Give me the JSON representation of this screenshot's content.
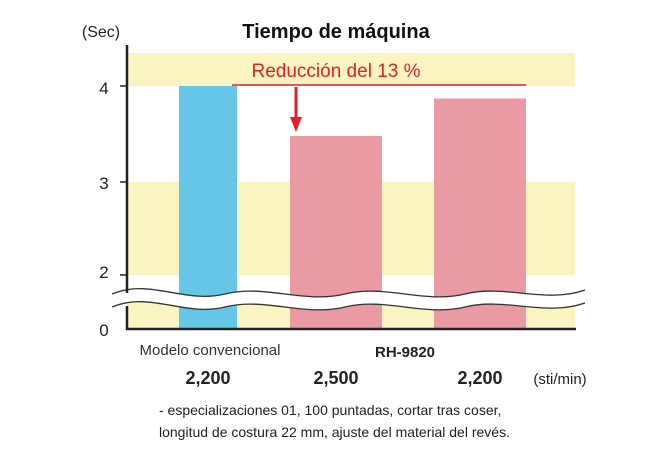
{
  "chart_data": {
    "type": "bar",
    "title": "Tiempo de máquina",
    "ylabel": "(Sec)",
    "xunit": "(sti/min)",
    "ylim_upper": [
      1.5,
      4.35
    ],
    "yticks": [
      0,
      2,
      3,
      4
    ],
    "axis_break": true,
    "annotation": "Reducción del 13 %",
    "groups": [
      "Modelo convencional",
      "RH-9820"
    ],
    "categories": [
      "2,200",
      "2,500",
      "2,200"
    ],
    "bars": [
      {
        "category": "2,200",
        "group": "Modelo convencional",
        "value": 4.0,
        "color": "#66c6e8"
      },
      {
        "category": "2,500",
        "group": "RH-9820",
        "value": 3.48,
        "color": "#ea9aa3"
      },
      {
        "category": "2,200",
        "group": "RH-9820",
        "value": 3.87,
        "color": "#ea9aa3"
      }
    ]
  },
  "notes": [
    "- especializaciones 01, 100 puntadas, cortar tras coser,",
    "longitud de costura 22 mm, ajuste del material del revés."
  ],
  "colors": {
    "band": "#faf4c2",
    "annotation": "#e0202a",
    "axis": "#222222"
  }
}
